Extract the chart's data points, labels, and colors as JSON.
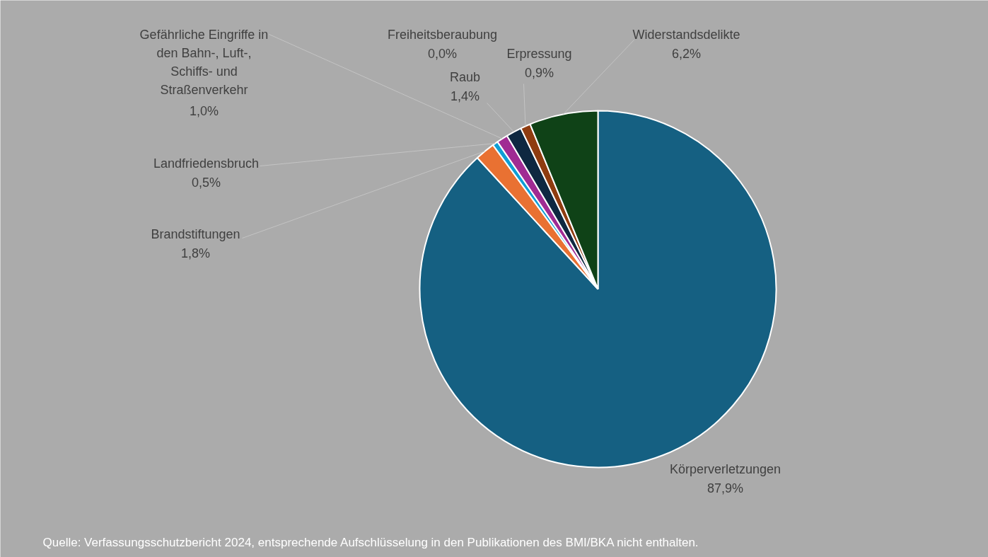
{
  "chart_data": {
    "type": "pie",
    "categories": [
      "Körperverletzungen",
      "Brandstiftungen",
      "Landfriedensbruch",
      "Gefährliche Eingriffe in den Bahn-, Luft-, Schiffs- und Straßenverkehr",
      "Freiheitsberaubung",
      "Raub",
      "Erpressung",
      "Widerstandsdelikte"
    ],
    "values": [
      87.9,
      1.8,
      0.5,
      1.0,
      0.0,
      1.4,
      0.9,
      6.2
    ],
    "colors": [
      "#156082",
      "#e97132",
      "#0f9ed5",
      "#a02b93",
      "#4ea72e",
      "#0e2841",
      "#8f3c10",
      "#0f4217"
    ],
    "value_labels": [
      "87,9%",
      "1,8%",
      "0,5%",
      "1,0%",
      "0,0%",
      "1,4%",
      "0,9%",
      "6,2%"
    ],
    "annotations": [
      "Quelle: Verfassungsschutzbericht 2024, entsprechende Aufschlüsselung in den Publikationen des BMI/BKA nicht enthalten."
    ]
  }
}
